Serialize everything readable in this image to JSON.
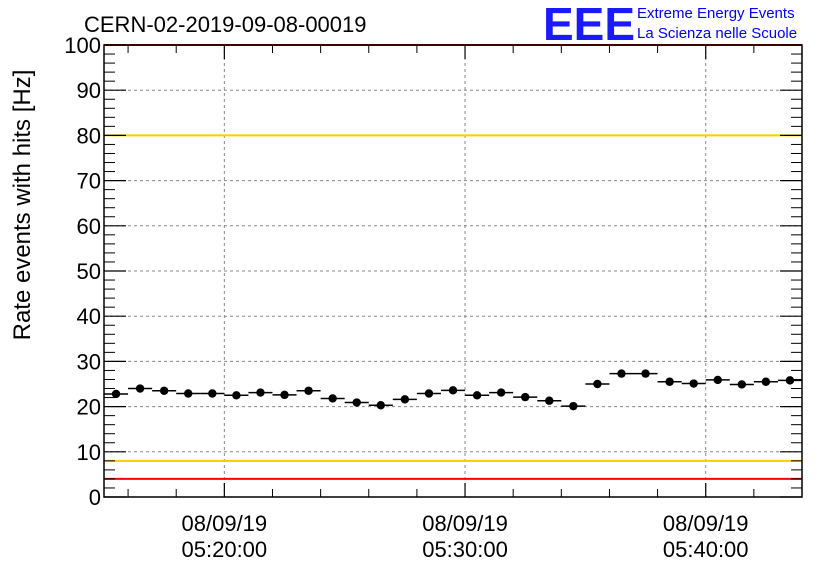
{
  "chart_data": {
    "type": "scatter",
    "title": "CERN-02-2019-09-08-00019",
    "ylabel": "Rate events with hits [Hz]",
    "xlabel": "",
    "ylim": [
      0,
      100
    ],
    "yticks": [
      0,
      10,
      20,
      30,
      40,
      50,
      60,
      70,
      80,
      90,
      100
    ],
    "xticks": [
      {
        "date": "08/09/19",
        "time": "05:20:00"
      },
      {
        "date": "08/09/19",
        "time": "05:30:00"
      },
      {
        "date": "08/09/19",
        "time": "05:40:00"
      }
    ],
    "grid": true,
    "bin_width_minutes": 1,
    "x_minutes_from_0515_range": [
      0,
      29
    ],
    "series": [
      {
        "x_start_time": "05:15:00",
        "values": [
          22.8,
          24.0,
          23.5,
          22.9,
          22.9,
          22.5,
          23.1,
          22.6,
          23.5,
          21.8,
          20.9,
          20.3,
          21.6,
          22.9,
          23.6,
          22.5,
          23.1,
          22.1,
          21.3,
          20.1,
          25.0,
          27.3,
          27.3,
          25.5,
          25.1,
          25.9,
          24.9,
          25.5,
          25.8
        ]
      }
    ],
    "reference_lines": [
      {
        "value": 100,
        "color": "#ff0000"
      },
      {
        "value": 80,
        "color": "#ffcc00"
      },
      {
        "value": 8,
        "color": "#ffcc00"
      },
      {
        "value": 4,
        "color": "#ff0000"
      }
    ]
  },
  "logo": {
    "mark": "EEE",
    "line1": "Extreme Energy Events",
    "line2": "La Scienza nelle Scuole"
  },
  "colors": {
    "marker": "#000000",
    "grid": "#888888",
    "logo_blue": "#1a1aff"
  }
}
